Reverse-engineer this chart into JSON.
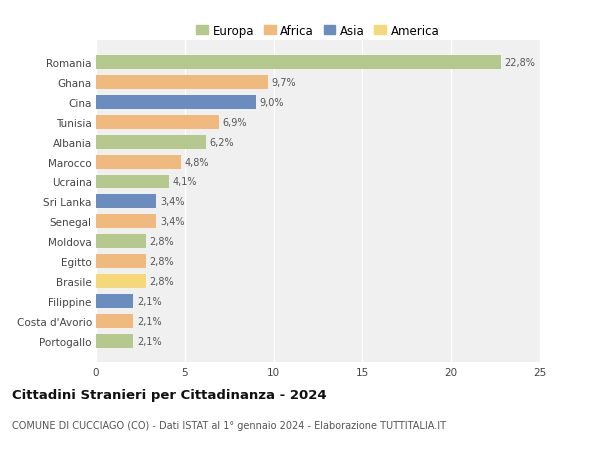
{
  "countries": [
    "Romania",
    "Ghana",
    "Cina",
    "Tunisia",
    "Albania",
    "Marocco",
    "Ucraina",
    "Sri Lanka",
    "Senegal",
    "Moldova",
    "Egitto",
    "Brasile",
    "Filippine",
    "Costa d'Avorio",
    "Portogallo"
  ],
  "values": [
    22.8,
    9.7,
    9.0,
    6.9,
    6.2,
    4.8,
    4.1,
    3.4,
    3.4,
    2.8,
    2.8,
    2.8,
    2.1,
    2.1,
    2.1
  ],
  "labels": [
    "22,8%",
    "9,7%",
    "9,0%",
    "6,9%",
    "6,2%",
    "4,8%",
    "4,1%",
    "3,4%",
    "3,4%",
    "2,8%",
    "2,8%",
    "2,8%",
    "2,1%",
    "2,1%",
    "2,1%"
  ],
  "colors": [
    "#b5c98e",
    "#f0b97d",
    "#6b8cbf",
    "#f0b97d",
    "#b5c98e",
    "#f0b97d",
    "#b5c98e",
    "#6b8cbf",
    "#f0b97d",
    "#b5c98e",
    "#f0b97d",
    "#f5d87a",
    "#6b8cbf",
    "#f0b97d",
    "#b5c98e"
  ],
  "legend_labels": [
    "Europa",
    "Africa",
    "Asia",
    "America"
  ],
  "legend_colors": [
    "#b5c98e",
    "#f0b97d",
    "#6b8cbf",
    "#f5d87a"
  ],
  "title": "Cittadini Stranieri per Cittadinanza - 2024",
  "subtitle": "COMUNE DI CUCCIAGO (CO) - Dati ISTAT al 1° gennaio 2024 - Elaborazione TUTTITALIA.IT",
  "xlim": [
    0,
    25
  ],
  "xticks": [
    0,
    5,
    10,
    15,
    20,
    25
  ],
  "bg_color": "#ffffff",
  "plot_bg_color": "#f0f0f0",
  "grid_color": "#ffffff",
  "bar_height": 0.7
}
